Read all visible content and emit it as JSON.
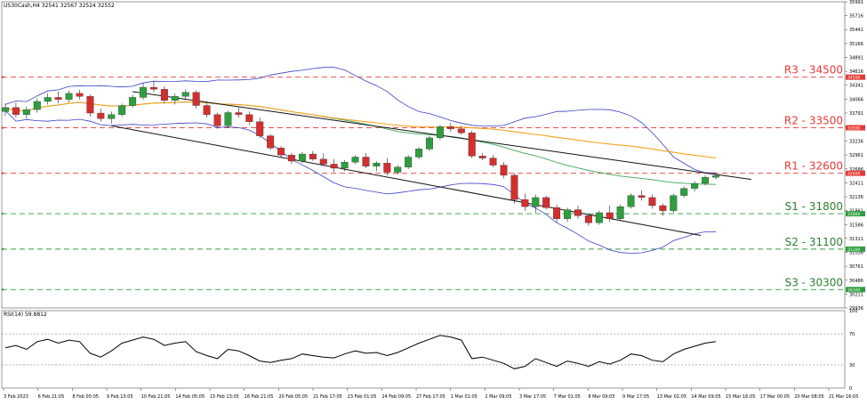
{
  "header": {
    "symbol_line": "US30Cash,H4  32541 32567 32524 32552"
  },
  "rsi": {
    "label": "RSI(14) 59.8812",
    "ticks": [
      "100",
      "70",
      "30",
      "0"
    ]
  },
  "price_axis_ticks": [
    "35991",
    "35716",
    "35441",
    "35166",
    "34891",
    "34616",
    "34341",
    "34066",
    "33791",
    "33516",
    "33236",
    "32961",
    "32686",
    "32411",
    "32136",
    "31861",
    "31586",
    "31311",
    "31036",
    "30761",
    "30486",
    "30211",
    "29936"
  ],
  "levels": [
    {
      "name": "R3",
      "value": 34500,
      "label": "R3 - 34500",
      "tag": "34500",
      "color": "#e53935",
      "text_color": "#e53935"
    },
    {
      "name": "R2",
      "value": 33500,
      "label": "R2 - 33500",
      "tag": "33500",
      "color": "#e53935",
      "text_color": "#e53935"
    },
    {
      "name": "R1",
      "value": 32600,
      "label": "R1 - 32600",
      "tag": "32600",
      "color": "#e53935",
      "text_color": "#e53935"
    },
    {
      "name": "S1",
      "value": 31800,
      "label": "S1 - 31800",
      "tag": "31800",
      "color": "#2e9e3e",
      "text_color": "#2e7d32"
    },
    {
      "name": "S2",
      "value": 31100,
      "label": "S2 - 31100",
      "tag": "31100",
      "color": "#2e9e3e",
      "text_color": "#2e7d32"
    },
    {
      "name": "S3",
      "value": 30300,
      "label": "S3 - 30300",
      "tag": "30300",
      "color": "#2e9e3e",
      "text_color": "#2e7d32"
    }
  ],
  "time_axis_labels": [
    "3 Feb 2023",
    "6 Feb 21:05",
    "8 Feb 05:05",
    "9 Feb 13:05",
    "10 Feb 21:05",
    "14 Feb 05:05",
    "15 Feb 13:05",
    "16 Feb 21:05",
    "20 Feb 05:05",
    "21 Feb 17:05",
    "23 Feb 01:05",
    "24 Feb 09:05",
    "27 Feb 17:05",
    "1 Mar 01:05",
    "2 Mar 09:05",
    "3 Mar 17:05",
    "7 Mar 01:05",
    "8 Mar 09:05",
    "9 Mar 17:05",
    "13 Mar 01:05",
    "14 Mar 09:05",
    "15 Mar 16:05",
    "17 Mar 00:05",
    "20 Mar 08:05",
    "21 Mar 16:05"
  ],
  "colors": {
    "bull": "#2e9e3e",
    "bear": "#d32f2f",
    "bollinger": "#3b3fc7",
    "ma_green": "#3aa655",
    "ma_orange": "#f5a21b",
    "channel": "#111111"
  },
  "chart_data": {
    "type": "candlestick",
    "price_range": [
      29936,
      35991
    ],
    "rsi_range": [
      0,
      100
    ],
    "rsi_levels": [
      70,
      30
    ],
    "candles_approx": [
      [
        33820,
        33980,
        33740,
        33900
      ],
      [
        33900,
        34000,
        33700,
        33760
      ],
      [
        33760,
        33920,
        33680,
        33860
      ],
      [
        33860,
        34080,
        33800,
        34020
      ],
      [
        34020,
        34180,
        33960,
        34100
      ],
      [
        34100,
        34220,
        33980,
        34060
      ],
      [
        34060,
        34240,
        34000,
        34180
      ],
      [
        34180,
        34250,
        34060,
        34120
      ],
      [
        34120,
        34160,
        33720,
        33790
      ],
      [
        33790,
        33880,
        33620,
        33680
      ],
      [
        33680,
        33820,
        33580,
        33760
      ],
      [
        33760,
        33980,
        33720,
        33940
      ],
      [
        33940,
        34150,
        33900,
        34100
      ],
      [
        34100,
        34380,
        34050,
        34300
      ],
      [
        34300,
        34420,
        34200,
        34260
      ],
      [
        34260,
        34320,
        33980,
        34040
      ],
      [
        34040,
        34180,
        33960,
        34120
      ],
      [
        34120,
        34260,
        34060,
        34200
      ],
      [
        34200,
        34240,
        33880,
        33940
      ],
      [
        33940,
        34020,
        33700,
        33760
      ],
      [
        33760,
        33800,
        33480,
        33540
      ],
      [
        33540,
        33840,
        33500,
        33800
      ],
      [
        33800,
        33900,
        33700,
        33760
      ],
      [
        33760,
        33820,
        33560,
        33620
      ],
      [
        33620,
        33700,
        33300,
        33340
      ],
      [
        33340,
        33380,
        33060,
        33100
      ],
      [
        33100,
        33140,
        32900,
        32960
      ],
      [
        32960,
        33000,
        32780,
        32840
      ],
      [
        32840,
        33020,
        32800,
        32980
      ],
      [
        32980,
        33040,
        32840,
        32880
      ],
      [
        32880,
        33000,
        32740,
        32780
      ],
      [
        32780,
        32880,
        32620,
        32700
      ],
      [
        32700,
        32860,
        32640,
        32820
      ],
      [
        32820,
        32960,
        32780,
        32920
      ],
      [
        32920,
        33000,
        32700,
        32740
      ],
      [
        32740,
        32840,
        32640,
        32800
      ],
      [
        32800,
        32900,
        32560,
        32620
      ],
      [
        32620,
        32760,
        32580,
        32720
      ],
      [
        32720,
        32960,
        32680,
        32920
      ],
      [
        32920,
        33120,
        32880,
        33080
      ],
      [
        33080,
        33340,
        33040,
        33300
      ],
      [
        33300,
        33560,
        33260,
        33520
      ],
      [
        33520,
        33600,
        33420,
        33480
      ],
      [
        33480,
        33540,
        33360,
        33400
      ],
      [
        33400,
        33440,
        32900,
        32940
      ],
      [
        32940,
        33000,
        32860,
        32900
      ],
      [
        32900,
        32960,
        32720,
        32760
      ],
      [
        32760,
        32820,
        32500,
        32560
      ],
      [
        32560,
        32600,
        32000,
        32080
      ],
      [
        32080,
        32200,
        31860,
        31940
      ],
      [
        31940,
        32180,
        31820,
        32120
      ],
      [
        32120,
        32160,
        31880,
        31920
      ],
      [
        31920,
        31980,
        31620,
        31700
      ],
      [
        31700,
        31920,
        31640,
        31880
      ],
      [
        31880,
        31960,
        31700,
        31760
      ],
      [
        31760,
        31800,
        31560,
        31620
      ],
      [
        31620,
        31860,
        31580,
        31820
      ],
      [
        31820,
        31960,
        31640,
        31700
      ],
      [
        31700,
        31980,
        31680,
        31940
      ],
      [
        31940,
        32200,
        31900,
        32160
      ],
      [
        32160,
        32260,
        32060,
        32120
      ],
      [
        32120,
        32180,
        31900,
        31960
      ],
      [
        31960,
        32000,
        31760,
        31860
      ],
      [
        31860,
        32200,
        31820,
        32160
      ],
      [
        32160,
        32340,
        32120,
        32300
      ],
      [
        32300,
        32440,
        32240,
        32400
      ],
      [
        32400,
        32560,
        32360,
        32520
      ],
      [
        32520,
        32600,
        32480,
        32552
      ]
    ],
    "rsi_values_approx": [
      52,
      55,
      50,
      60,
      63,
      58,
      62,
      60,
      45,
      40,
      48,
      58,
      62,
      66,
      63,
      55,
      58,
      60,
      47,
      42,
      38,
      50,
      48,
      42,
      35,
      33,
      36,
      38,
      44,
      42,
      40,
      39,
      44,
      48,
      45,
      46,
      42,
      46,
      52,
      58,
      63,
      68,
      66,
      62,
      38,
      40,
      36,
      32,
      25,
      28,
      38,
      33,
      28,
      35,
      32,
      28,
      34,
      31,
      36,
      44,
      42,
      36,
      34,
      44,
      50,
      54,
      58,
      60
    ]
  }
}
